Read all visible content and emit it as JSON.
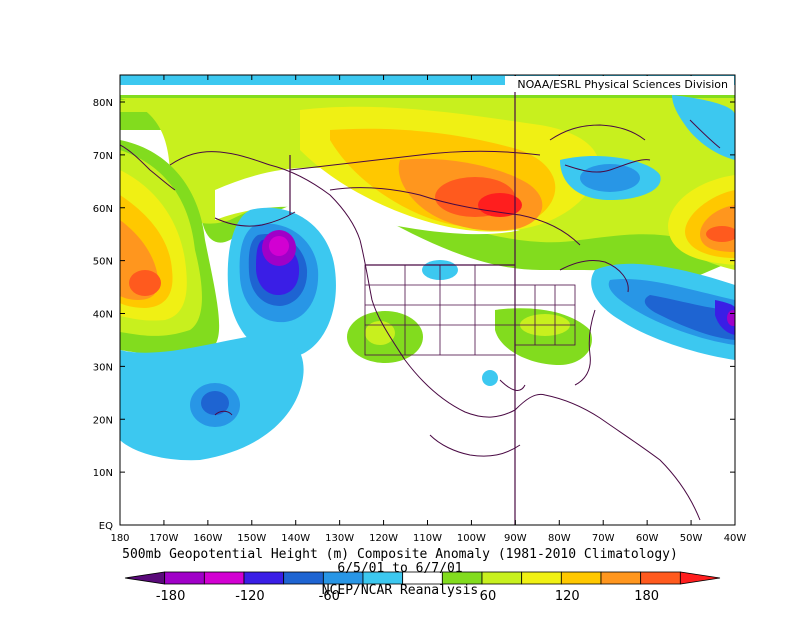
{
  "map": {
    "credit": "NOAA/ESRL Physical Sciences Division",
    "lat_labels": [
      "80N",
      "70N",
      "60N",
      "50N",
      "40N",
      "30N",
      "20N",
      "10N",
      "EQ"
    ],
    "lon_labels": [
      "180",
      "170W",
      "160W",
      "150W",
      "140W",
      "130W",
      "120W",
      "110W",
      "100W",
      "90W",
      "80W",
      "70W",
      "60W",
      "50W",
      "40W"
    ]
  },
  "captions": {
    "title": "500mb Geopotential Height (m) Composite Anomaly (1981-2010 Climatology)",
    "dates": "6/5/01 to 6/7/01",
    "source": "NCEP/NCAR Reanalysis"
  },
  "colorbar": {
    "labels": [
      "-180",
      "-120",
      "-60",
      "60",
      "120",
      "180"
    ],
    "colors": [
      "#5a0a7a",
      "#a000c8",
      "#d200d2",
      "#3a1ee6",
      "#1e64d2",
      "#2896e6",
      "#3cc8f0",
      "#ffffff",
      "#82dc1e",
      "#c8f01e",
      "#f0f014",
      "#ffc800",
      "#ff961e",
      "#ff5a1e",
      "#ff1e1e"
    ],
    "white": "#ffffff"
  }
}
